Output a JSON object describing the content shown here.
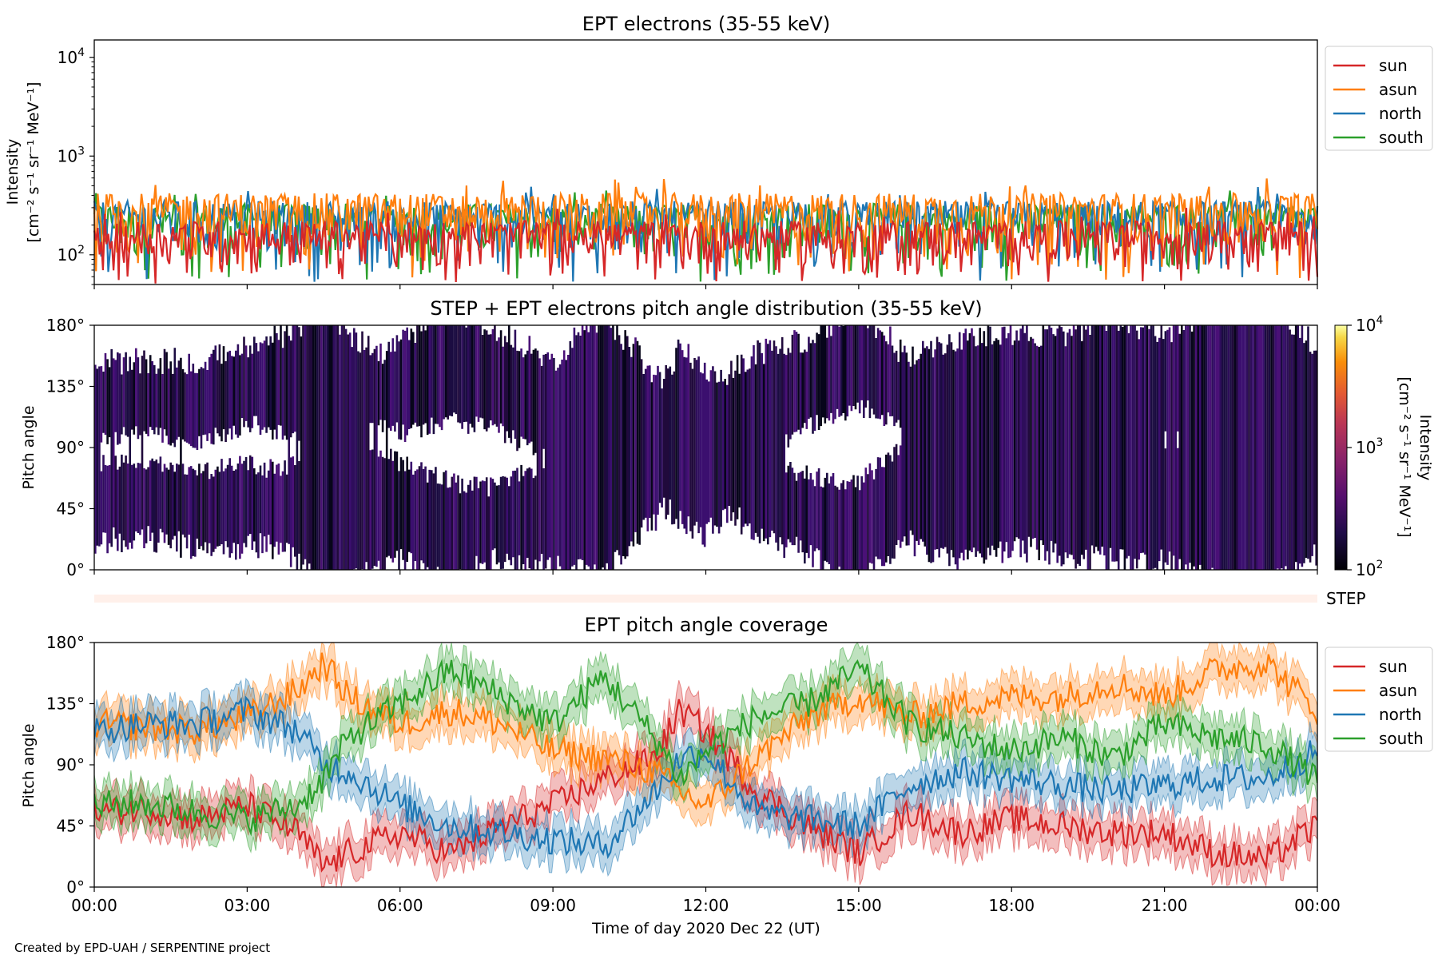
{
  "figure": {
    "credit": "Created by EPD-UAH / SERPENTINE project",
    "xlabel": "Time of day 2020 Dec 22 (UT)",
    "x_ticks": [
      "00:00",
      "03:00",
      "06:00",
      "09:00",
      "12:00",
      "15:00",
      "18:00",
      "21:00",
      "00:00"
    ]
  },
  "colors": {
    "sun": "#d62728",
    "asun": "#ff7f0e",
    "north": "#1f77b4",
    "south": "#2ca02c",
    "step_band": "#fff0ea"
  },
  "chart_data": [
    {
      "type": "line",
      "title": "EPT electrons (35-55 keV)",
      "ylabel_line1": "Intensity",
      "ylabel_line2": "[cm⁻² s⁻¹ sr⁻¹ MeV⁻¹]",
      "y_scale": "log",
      "ylim": [
        50,
        15000
      ],
      "y_ticks": [
        100,
        1000,
        10000
      ],
      "y_tick_labels": [
        {
          "base": "10",
          "exp": "2"
        },
        {
          "base": "10",
          "exp": "3"
        },
        {
          "base": "10",
          "exp": "4"
        }
      ],
      "x_range_hours": [
        0,
        24
      ],
      "legend": [
        "sun",
        "asun",
        "north",
        "south"
      ],
      "legend_position": "outside upper right",
      "series": [
        {
          "name": "sun",
          "typical_range": [
            50,
            220
          ],
          "peak": 300
        },
        {
          "name": "asun",
          "typical_range": [
            50,
            420
          ],
          "peak": 600
        },
        {
          "name": "north",
          "typical_range": [
            50,
            350
          ],
          "peak": 500
        },
        {
          "name": "south",
          "typical_range": [
            50,
            330
          ],
          "peak": 450
        }
      ]
    },
    {
      "type": "heatmap",
      "title": "STEP + EPT electrons pitch angle distribution (35-55 keV)",
      "ylabel": "Pitch angle",
      "ylim": [
        0,
        180
      ],
      "y_tick_labels": [
        "0°",
        "45°",
        "90°",
        "135°",
        "180°"
      ],
      "colorbar": {
        "label_line1": "Intensity",
        "label_line2": "[cm⁻² s⁻¹ sr⁻¹ MeV⁻¹]",
        "scale": "log",
        "range": [
          100,
          10000
        ],
        "tick_labels": [
          {
            "base": "10",
            "exp": "2"
          },
          {
            "base": "10",
            "exp": "3"
          },
          {
            "base": "10",
            "exp": "4"
          }
        ],
        "colormap": "inferno"
      }
    },
    {
      "type": "band",
      "label": "STEP"
    },
    {
      "type": "line",
      "title": "EPT pitch angle coverage",
      "ylabel": "Pitch angle",
      "ylim": [
        0,
        180
      ],
      "y_tick_labels": [
        "0°",
        "45°",
        "90°",
        "135°",
        "180°"
      ],
      "legend": [
        "sun",
        "asun",
        "north",
        "south"
      ],
      "legend_position": "outside upper right",
      "x_hours": [
        0,
        1,
        2,
        3,
        4,
        4.5,
        5,
        6,
        7,
        8,
        9,
        10,
        11,
        11.5,
        12,
        13,
        14,
        15,
        16,
        17,
        18,
        19,
        20,
        21,
        22,
        23,
        24
      ],
      "series": [
        {
          "name": "sun",
          "values": [
            55,
            58,
            50,
            60,
            40,
            15,
            25,
            40,
            25,
            45,
            60,
            80,
            95,
            130,
            115,
            70,
            45,
            25,
            55,
            40,
            50,
            45,
            40,
            40,
            25,
            20,
            45
          ]
        },
        {
          "name": "asun",
          "values": [
            120,
            118,
            115,
            125,
            145,
            165,
            140,
            120,
            130,
            120,
            100,
            95,
            85,
            70,
            60,
            95,
            125,
            140,
            125,
            135,
            140,
            140,
            150,
            140,
            160,
            165,
            130
          ]
        },
        {
          "name": "north",
          "values": [
            115,
            120,
            120,
            130,
            115,
            90,
            85,
            60,
            45,
            40,
            35,
            30,
            70,
            95,
            100,
            55,
            50,
            45,
            75,
            85,
            80,
            75,
            70,
            75,
            80,
            80,
            100
          ]
        },
        {
          "name": "south",
          "values": [
            60,
            62,
            55,
            50,
            60,
            80,
            110,
            135,
            160,
            140,
            120,
            155,
            110,
            80,
            100,
            125,
            135,
            160,
            120,
            110,
            100,
            110,
            95,
            120,
            110,
            105,
            80
          ]
        }
      ]
    }
  ]
}
